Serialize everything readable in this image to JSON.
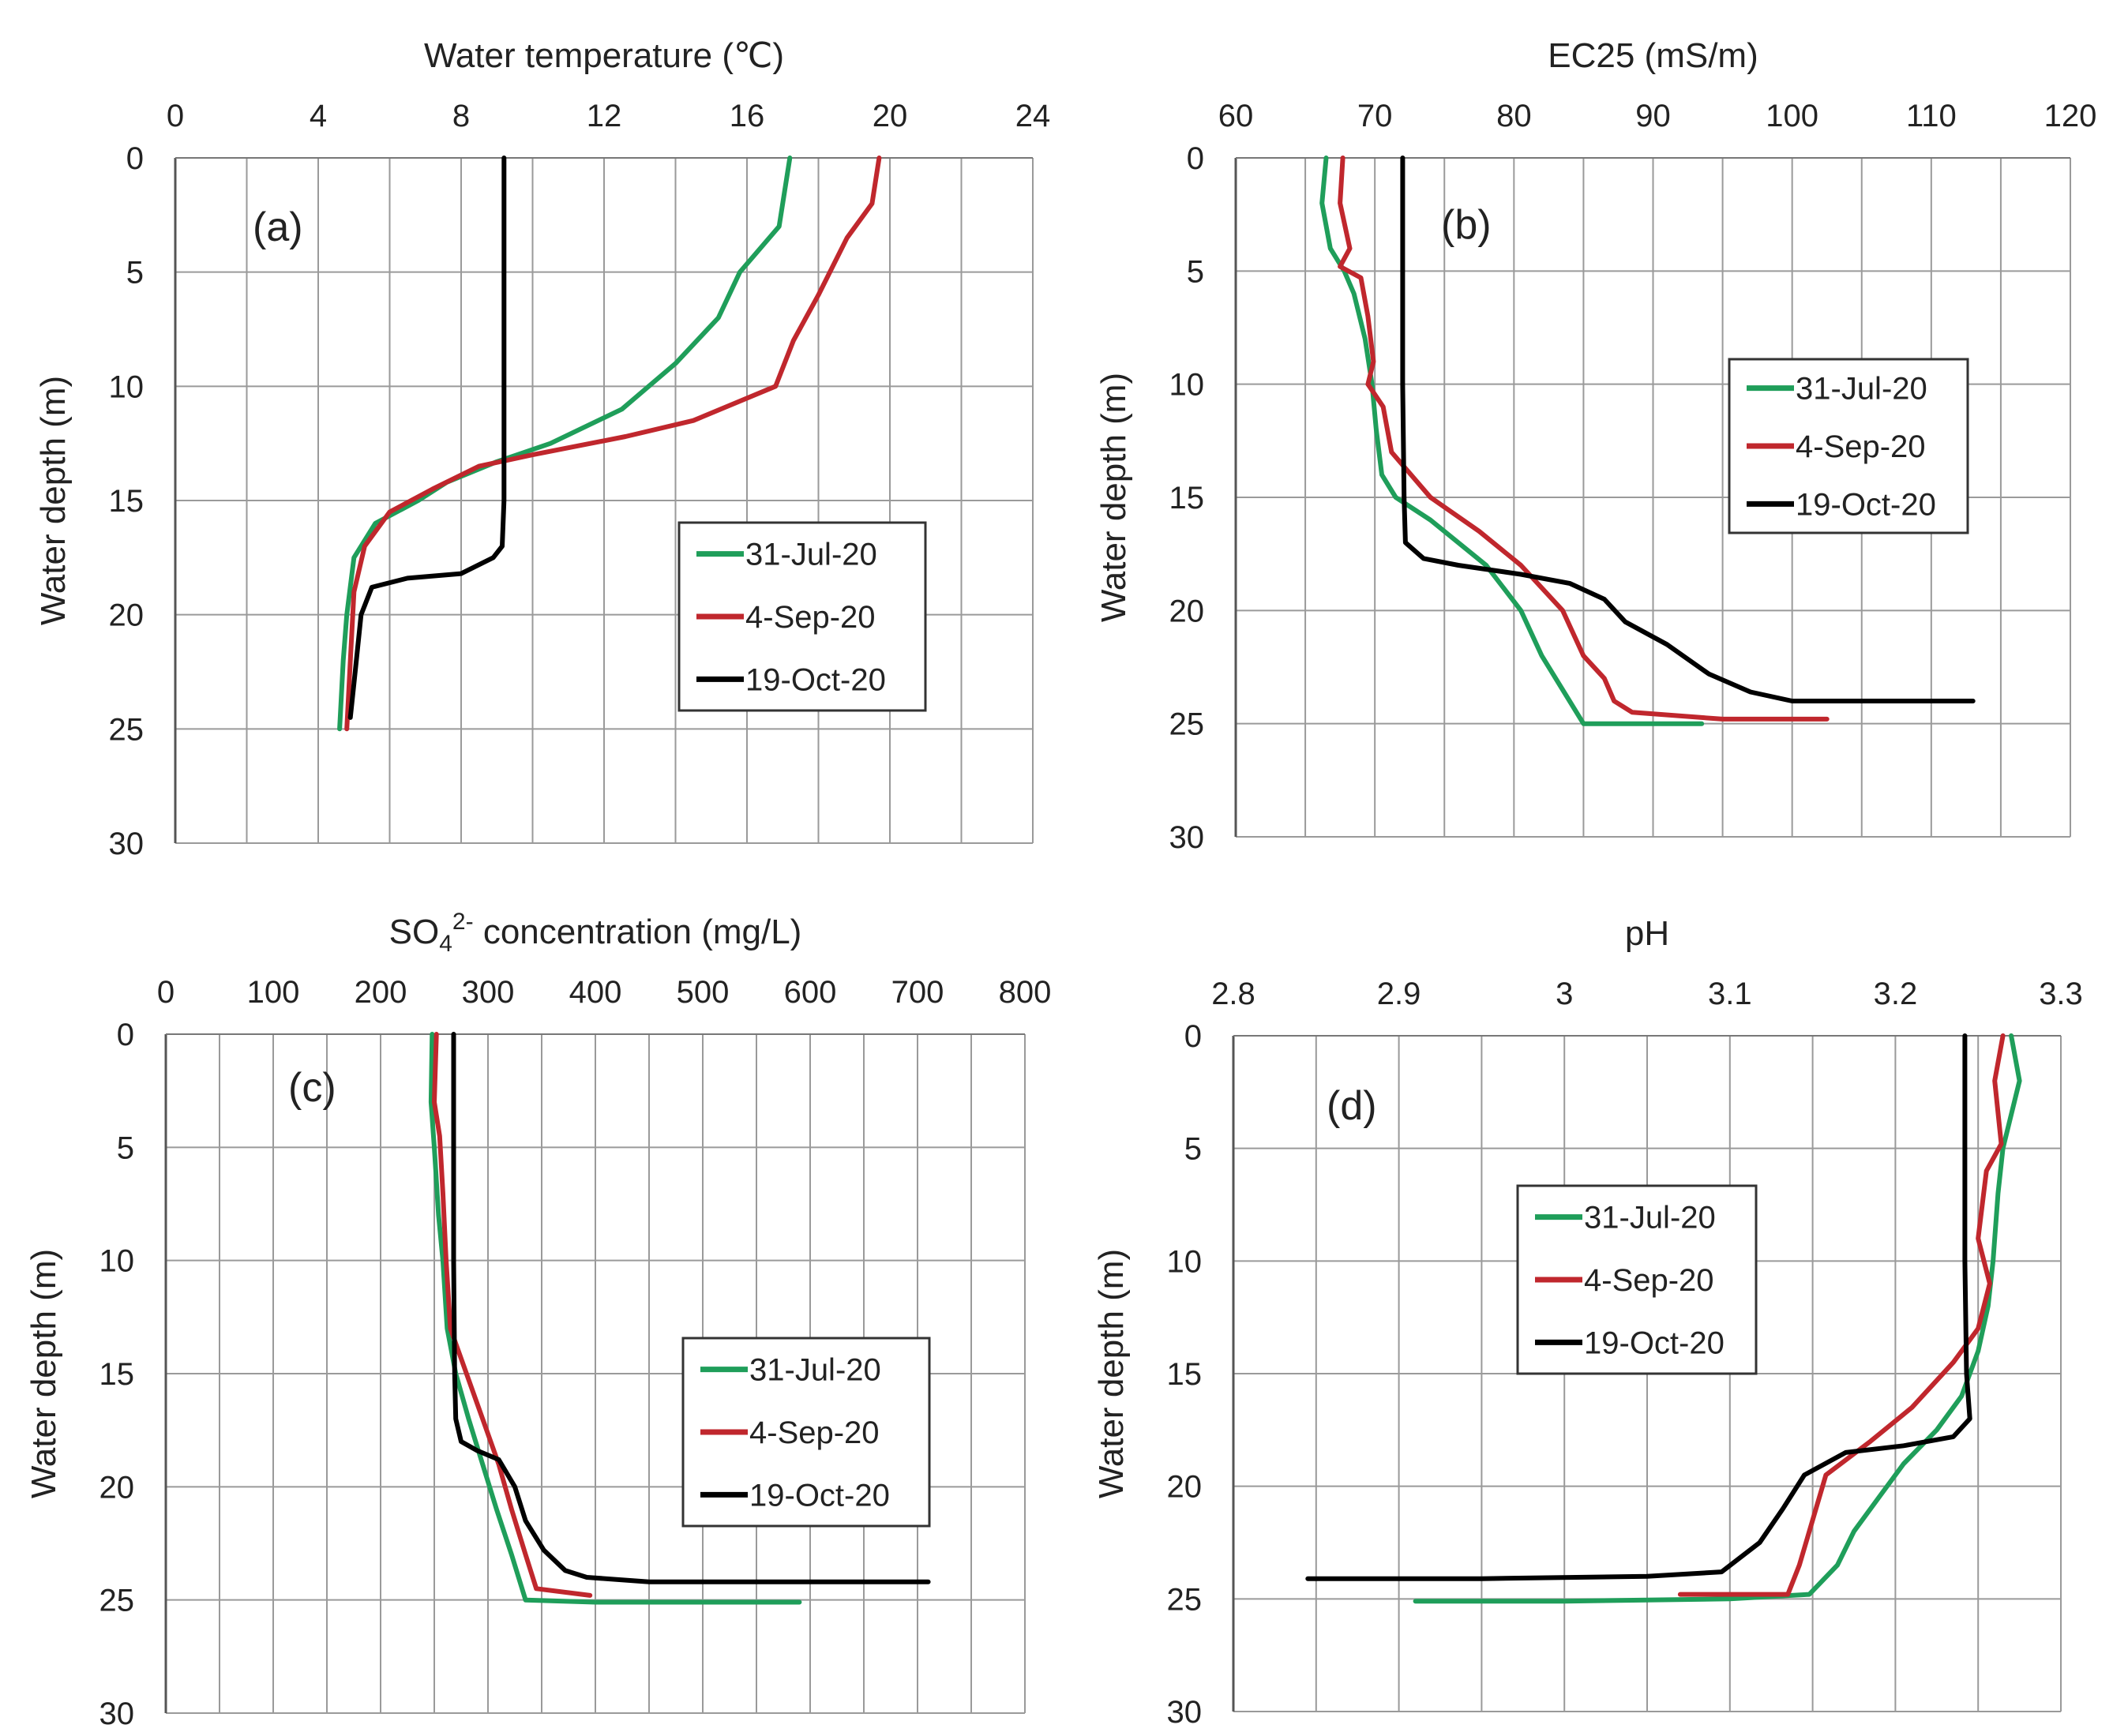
{
  "figure": {
    "series_colors": {
      "31-Jul-20": "#1f9e5a",
      "4-Sep-20": "#c0272d",
      "19-Oct-20": "#000000"
    }
  },
  "chart_data": [
    {
      "type": "line",
      "panel": "(a)",
      "xlabel": "Water temperature (℃)",
      "ylabel": "Water depth (m)",
      "xlim": [
        0,
        24
      ],
      "ylim": [
        30,
        0
      ],
      "x_ticks": [
        "0",
        "4",
        "8",
        "12",
        "16",
        "20",
        "24"
      ],
      "y_ticks": [
        "0",
        "5",
        "10",
        "15",
        "20",
        "25",
        "30"
      ],
      "grid": true,
      "y_reversed": true,
      "legend_position": "center-right",
      "series": [
        {
          "name": "31-Jul-20",
          "color": "#1f9e5a",
          "points": [
            [
              17.2,
              0
            ],
            [
              16.9,
              3
            ],
            [
              15.8,
              5
            ],
            [
              15.2,
              7
            ],
            [
              14,
              9
            ],
            [
              12.5,
              11
            ],
            [
              10.5,
              12.5
            ],
            [
              9,
              13.3
            ],
            [
              7.6,
              14.2
            ],
            [
              6.8,
              15
            ],
            [
              5.6,
              16
            ],
            [
              5,
              17.5
            ],
            [
              4.8,
              20
            ],
            [
              4.7,
              22
            ],
            [
              4.6,
              25
            ]
          ]
        },
        {
          "name": "4-Sep-20",
          "color": "#c0272d",
          "points": [
            [
              19.7,
              0
            ],
            [
              19.5,
              2
            ],
            [
              18.8,
              3.5
            ],
            [
              18,
              6
            ],
            [
              17.3,
              8
            ],
            [
              16.8,
              10
            ],
            [
              14.5,
              11.5
            ],
            [
              12.6,
              12.2
            ],
            [
              10,
              13
            ],
            [
              8.5,
              13.5
            ],
            [
              7.2,
              14.5
            ],
            [
              6,
              15.5
            ],
            [
              5.3,
              17
            ],
            [
              5,
              19
            ],
            [
              4.9,
              22
            ],
            [
              4.8,
              25
            ]
          ]
        },
        {
          "name": "19-Oct-20",
          "color": "#000000",
          "points": [
            [
              9.2,
              0
            ],
            [
              9.2,
              10
            ],
            [
              9.2,
              15
            ],
            [
              9.15,
              17
            ],
            [
              8.9,
              17.5
            ],
            [
              8,
              18.2
            ],
            [
              6.5,
              18.4
            ],
            [
              5.5,
              18.8
            ],
            [
              5.2,
              20
            ],
            [
              5,
              23
            ],
            [
              4.9,
              24.5
            ]
          ]
        }
      ]
    },
    {
      "type": "line",
      "panel": "(b)",
      "xlabel": "EC25 (mS/m)",
      "ylabel": "Water depth (m)",
      "xlim": [
        60,
        120
      ],
      "ylim": [
        30,
        0
      ],
      "x_ticks": [
        "60",
        "70",
        "80",
        "90",
        "100",
        "110",
        "120"
      ],
      "y_ticks": [
        "0",
        "5",
        "10",
        "15",
        "20",
        "25",
        "30"
      ],
      "grid": true,
      "y_reversed": true,
      "legend_position": "center-right",
      "series": [
        {
          "name": "31-Jul-20",
          "color": "#1f9e5a",
          "points": [
            [
              66.5,
              0
            ],
            [
              66.2,
              2
            ],
            [
              66.8,
              4
            ],
            [
              67.8,
              5
            ],
            [
              68.5,
              6
            ],
            [
              69.3,
              8
            ],
            [
              69.8,
              10
            ],
            [
              70.1,
              12
            ],
            [
              70.5,
              14
            ],
            [
              71.5,
              15
            ],
            [
              74,
              16
            ],
            [
              78,
              18
            ],
            [
              80.5,
              20
            ],
            [
              82,
              22
            ],
            [
              84,
              24
            ],
            [
              85,
              25
            ],
            [
              89,
              25
            ],
            [
              93.5,
              25
            ]
          ]
        },
        {
          "name": "4-Sep-20",
          "color": "#c0272d",
          "points": [
            [
              67.7,
              0
            ],
            [
              67.5,
              2
            ],
            [
              68.2,
              4
            ],
            [
              67.5,
              4.8
            ],
            [
              69,
              5.3
            ],
            [
              69.5,
              7
            ],
            [
              69.9,
              9
            ],
            [
              69.5,
              10
            ],
            [
              70.6,
              11
            ],
            [
              71.2,
              13
            ],
            [
              74,
              15
            ],
            [
              77.5,
              16.5
            ],
            [
              80.5,
              18
            ],
            [
              83.5,
              20
            ],
            [
              85,
              22
            ],
            [
              86.5,
              23
            ],
            [
              87.2,
              24
            ],
            [
              88.5,
              24.5
            ],
            [
              95,
              24.8
            ],
            [
              102.5,
              24.8
            ]
          ]
        },
        {
          "name": "19-Oct-20",
          "color": "#000000",
          "points": [
            [
              72,
              0
            ],
            [
              72,
              5
            ],
            [
              72,
              10
            ],
            [
              72.1,
              15
            ],
            [
              72.2,
              17
            ],
            [
              73.5,
              17.7
            ],
            [
              76,
              18
            ],
            [
              80.5,
              18.4
            ],
            [
              84,
              18.8
            ],
            [
              86.5,
              19.5
            ],
            [
              88,
              20.5
            ],
            [
              91,
              21.5
            ],
            [
              94,
              22.8
            ],
            [
              97,
              23.6
            ],
            [
              100,
              24
            ],
            [
              105,
              24
            ],
            [
              113,
              24
            ]
          ]
        }
      ]
    },
    {
      "type": "line",
      "panel": "(c)",
      "xlabel": "SO₄²⁻ concentration (mg/L)",
      "xlabel_main": "SO",
      "xlabel_sub": "4",
      "xlabel_sup": "2-",
      "xlabel_rest": " concentration (mg/L)",
      "ylabel": "Water depth (m)",
      "xlim": [
        0,
        800
      ],
      "ylim": [
        30,
        0
      ],
      "x_ticks": [
        "0",
        "100",
        "200",
        "300",
        "400",
        "500",
        "600",
        "700",
        "800"
      ],
      "y_ticks": [
        "0",
        "5",
        "10",
        "15",
        "20",
        "25",
        "30"
      ],
      "grid": true,
      "y_reversed": true,
      "legend_position": "center-right",
      "series": [
        {
          "name": "31-Jul-20",
          "color": "#1f9e5a",
          "points": [
            [
              248,
              0
            ],
            [
              247,
              3
            ],
            [
              250,
              5
            ],
            [
              254,
              8
            ],
            [
              258,
              10
            ],
            [
              262,
              13
            ],
            [
              270,
              15
            ],
            [
              282,
              17
            ],
            [
              295,
              19
            ],
            [
              308,
              21
            ],
            [
              322,
              23
            ],
            [
              335,
              25
            ],
            [
              400,
              25.1
            ],
            [
              480,
              25.1
            ],
            [
              590,
              25.1
            ]
          ]
        },
        {
          "name": "4-Sep-20",
          "color": "#c0272d",
          "points": [
            [
              252,
              0
            ],
            [
              250,
              3
            ],
            [
              255,
              4.5
            ],
            [
              258,
              7
            ],
            [
              261,
              10
            ],
            [
              265,
              13
            ],
            [
              280,
              15
            ],
            [
              295,
              17
            ],
            [
              310,
              19
            ],
            [
              322,
              21
            ],
            [
              335,
              23
            ],
            [
              345,
              24.5
            ],
            [
              395,
              24.8
            ]
          ]
        },
        {
          "name": "19-Oct-20",
          "color": "#000000",
          "points": [
            [
              268,
              0
            ],
            [
              268,
              5
            ],
            [
              268,
              10
            ],
            [
              269,
              15
            ],
            [
              270,
              17
            ],
            [
              275,
              18
            ],
            [
              290,
              18.4
            ],
            [
              310,
              18.8
            ],
            [
              325,
              20
            ],
            [
              335,
              21.5
            ],
            [
              352,
              22.8
            ],
            [
              372,
              23.7
            ],
            [
              392,
              24
            ],
            [
              450,
              24.2
            ],
            [
              550,
              24.2
            ],
            [
              710,
              24.2
            ]
          ]
        }
      ]
    },
    {
      "type": "line",
      "panel": "(d)",
      "xlabel": "pH",
      "ylabel": "Water depth (m)",
      "xlim": [
        2.8,
        3.3
      ],
      "ylim": [
        30,
        0
      ],
      "x_ticks": [
        "2.8",
        "2.9",
        "3",
        "3.1",
        "3.2",
        "3.3"
      ],
      "y_ticks": [
        "0",
        "5",
        "10",
        "15",
        "20",
        "25",
        "30"
      ],
      "grid": true,
      "y_reversed": true,
      "legend_position": "center-left",
      "series": [
        {
          "name": "31-Jul-20",
          "color": "#1f9e5a",
          "points": [
            [
              3.27,
              0
            ],
            [
              3.275,
              2
            ],
            [
              3.265,
              5
            ],
            [
              3.262,
              7
            ],
            [
              3.259,
              10
            ],
            [
              3.256,
              12
            ],
            [
              3.25,
              14
            ],
            [
              3.24,
              16
            ],
            [
              3.225,
              17.5
            ],
            [
              3.205,
              19
            ],
            [
              3.19,
              20.5
            ],
            [
              3.175,
              22
            ],
            [
              3.165,
              23.5
            ],
            [
              3.148,
              24.8
            ],
            [
              3.1,
              25
            ],
            [
              3.0,
              25.1
            ],
            [
              2.91,
              25.1
            ]
          ]
        },
        {
          "name": "4-Sep-20",
          "color": "#c0272d",
          "points": [
            [
              3.265,
              0
            ],
            [
              3.26,
              2
            ],
            [
              3.264,
              4.8
            ],
            [
              3.255,
              6
            ],
            [
              3.25,
              9
            ],
            [
              3.257,
              11
            ],
            [
              3.25,
              13
            ],
            [
              3.235,
              14.5
            ],
            [
              3.21,
              16.5
            ],
            [
              3.185,
              18
            ],
            [
              3.158,
              19.5
            ],
            [
              3.15,
              21.5
            ],
            [
              3.142,
              23.5
            ],
            [
              3.135,
              24.8
            ],
            [
              3.07,
              24.8
            ]
          ]
        },
        {
          "name": "19-Oct-20",
          "color": "#000000",
          "points": [
            [
              3.242,
              0
            ],
            [
              3.242,
              5
            ],
            [
              3.242,
              10
            ],
            [
              3.243,
              15
            ],
            [
              3.245,
              17
            ],
            [
              3.235,
              17.8
            ],
            [
              3.205,
              18.2
            ],
            [
              3.17,
              18.5
            ],
            [
              3.145,
              19.5
            ],
            [
              3.132,
              21
            ],
            [
              3.118,
              22.5
            ],
            [
              3.095,
              23.8
            ],
            [
              3.05,
              24
            ],
            [
              2.95,
              24.1
            ],
            [
              2.845,
              24.1
            ]
          ]
        }
      ]
    }
  ]
}
